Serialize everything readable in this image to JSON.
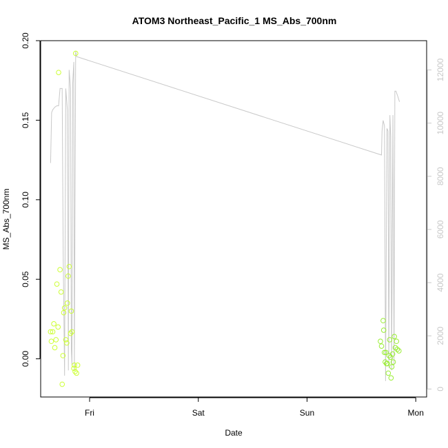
{
  "chart_data": {
    "type": "scatter",
    "title": "ATOM3 Northeast_Pacific_1 MS_Abs_700nm",
    "xlabel": "Date",
    "ylabel": "MS_Abs_700nm",
    "x_ticks": [
      {
        "label": "Fri",
        "value": 1.0
      },
      {
        "label": "Sat",
        "value": 2.0
      },
      {
        "label": "Sun",
        "value": 3.0
      },
      {
        "label": "Mon",
        "value": 4.0
      }
    ],
    "xlim": [
      0.55,
      4.1
    ],
    "ylim": [
      -0.024,
      0.2
    ],
    "y_ticks": [
      {
        "label": "0.00",
        "value": 0.0
      },
      {
        "label": "0.05",
        "value": 0.05
      },
      {
        "label": "0.10",
        "value": 0.1
      },
      {
        "label": "0.15",
        "value": 0.15
      },
      {
        "label": "0.20",
        "value": 0.2
      }
    ],
    "y2lim": [
      -300,
      13100
    ],
    "y2_ticks": [
      {
        "label": "0",
        "value": 0
      },
      {
        "label": "2000",
        "value": 2000
      },
      {
        "label": "4000",
        "value": 4000
      },
      {
        "label": "6000",
        "value": 6000
      },
      {
        "label": "8000",
        "value": 8000
      },
      {
        "label": "10000",
        "value": 10000
      },
      {
        "label": "12000",
        "value": 12000
      }
    ],
    "grid": false,
    "colors": {
      "points_early": "#ccff33",
      "points_late": "#99ee33",
      "line": "#c8c8c8",
      "right_axis": "#c8c8c8",
      "axes": "#000000"
    },
    "series": [
      {
        "type": "scatter",
        "axis": "left",
        "points": [
          {
            "x": 0.641,
            "y": 0.017
          },
          {
            "x": 0.648,
            "y": 0.011
          },
          {
            "x": 0.661,
            "y": 0.017
          },
          {
            "x": 0.671,
            "y": 0.022
          },
          {
            "x": 0.68,
            "y": 0.007
          },
          {
            "x": 0.691,
            "y": 0.012
          },
          {
            "x": 0.699,
            "y": 0.047
          },
          {
            "x": 0.71,
            "y": 0.02
          },
          {
            "x": 0.715,
            "y": 0.18
          },
          {
            "x": 0.728,
            "y": 0.056
          },
          {
            "x": 0.738,
            "y": 0.042
          },
          {
            "x": 0.748,
            "y": -0.016
          },
          {
            "x": 0.755,
            "y": 0.002
          },
          {
            "x": 0.762,
            "y": 0.029
          },
          {
            "x": 0.77,
            "y": 0.032
          },
          {
            "x": 0.781,
            "y": 0.012
          },
          {
            "x": 0.79,
            "y": 0.01
          },
          {
            "x": 0.796,
            "y": 0.035
          },
          {
            "x": 0.803,
            "y": 0.052
          },
          {
            "x": 0.812,
            "y": 0.058
          },
          {
            "x": 0.825,
            "y": 0.016
          },
          {
            "x": 0.832,
            "y": 0.03
          },
          {
            "x": 0.838,
            "y": 0.017
          },
          {
            "x": 0.855,
            "y": -0.006
          },
          {
            "x": 0.86,
            "y": -0.004
          },
          {
            "x": 0.867,
            "y": -0.008
          },
          {
            "x": 0.872,
            "y": 0.192
          },
          {
            "x": 0.88,
            "y": -0.009
          },
          {
            "x": 0.89,
            "y": -0.004
          }
        ]
      },
      {
        "type": "scatter",
        "axis": "left",
        "points": [
          {
            "x": 3.675,
            "y": 0.011
          },
          {
            "x": 3.685,
            "y": 0.008
          },
          {
            "x": 3.7,
            "y": 0.024
          },
          {
            "x": 3.705,
            "y": 0.018
          },
          {
            "x": 3.712,
            "y": 0.004
          },
          {
            "x": 3.719,
            "y": -0.002
          },
          {
            "x": 3.726,
            "y": 0.004
          },
          {
            "x": 3.731,
            "y": -0.003
          },
          {
            "x": 3.738,
            "y": -0.003
          },
          {
            "x": 3.747,
            "y": -0.009
          },
          {
            "x": 3.754,
            "y": 0.002
          },
          {
            "x": 3.76,
            "y": 0.012
          },
          {
            "x": 3.768,
            "y": 0.001
          },
          {
            "x": 3.773,
            "y": -0.012
          },
          {
            "x": 3.78,
            "y": -0.005
          },
          {
            "x": 3.787,
            "y": 0.003
          },
          {
            "x": 3.793,
            "y": -0.002
          },
          {
            "x": 3.803,
            "y": 0.014
          },
          {
            "x": 3.812,
            "y": 0.007
          },
          {
            "x": 3.823,
            "y": 0.011
          },
          {
            "x": 3.83,
            "y": 0.006
          },
          {
            "x": 3.845,
            "y": 0.005
          }
        ]
      },
      {
        "type": "line",
        "axis": "right",
        "points": [
          {
            "x": 0.641,
            "y": 8500
          },
          {
            "x": 0.651,
            "y": 10400
          },
          {
            "x": 0.661,
            "y": 10500
          },
          {
            "x": 0.68,
            "y": 10600
          },
          {
            "x": 0.699,
            "y": 10650
          },
          {
            "x": 0.715,
            "y": 10650
          },
          {
            "x": 0.728,
            "y": 11300
          },
          {
            "x": 0.748,
            "y": 11300
          },
          {
            "x": 0.757,
            "y": 5000
          },
          {
            "x": 0.77,
            "y": 500
          },
          {
            "x": 0.781,
            "y": 11300
          },
          {
            "x": 0.796,
            "y": 10500
          },
          {
            "x": 0.805,
            "y": 700
          },
          {
            "x": 0.812,
            "y": 12000
          },
          {
            "x": 0.825,
            "y": 11300
          },
          {
            "x": 0.832,
            "y": 1500
          },
          {
            "x": 0.838,
            "y": 900
          },
          {
            "x": 0.845,
            "y": 11500
          },
          {
            "x": 0.855,
            "y": 12300
          },
          {
            "x": 0.86,
            "y": 700
          },
          {
            "x": 0.872,
            "y": 12700
          },
          {
            "x": 0.88,
            "y": 12500
          },
          {
            "x": 3.685,
            "y": 8800
          },
          {
            "x": 3.69,
            "y": 9700
          },
          {
            "x": 3.7,
            "y": 10100
          },
          {
            "x": 3.712,
            "y": 9900
          },
          {
            "x": 3.722,
            "y": 300
          },
          {
            "x": 3.735,
            "y": 9800
          },
          {
            "x": 3.745,
            "y": 9700
          },
          {
            "x": 3.752,
            "y": 800
          },
          {
            "x": 3.762,
            "y": 10300
          },
          {
            "x": 3.77,
            "y": 9500
          },
          {
            "x": 3.778,
            "y": 700
          },
          {
            "x": 3.79,
            "y": 10300
          },
          {
            "x": 3.8,
            "y": 900
          },
          {
            "x": 3.808,
            "y": 11200
          },
          {
            "x": 3.818,
            "y": 11200
          },
          {
            "x": 3.835,
            "y": 11000
          },
          {
            "x": 3.85,
            "y": 10800
          }
        ]
      }
    ]
  }
}
